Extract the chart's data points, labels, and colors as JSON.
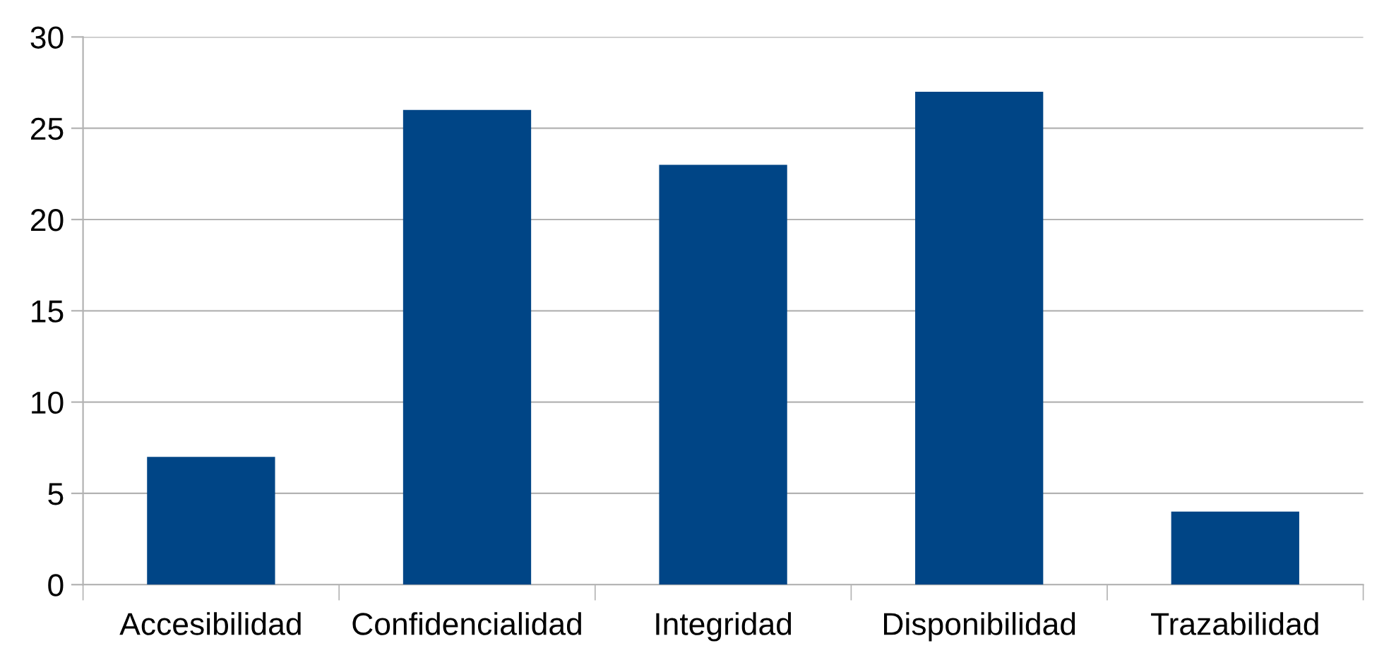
{
  "chart_data": {
    "type": "bar",
    "categories": [
      "Accesibilidad",
      "Confidencialidad",
      "Integridad",
      "Disponibilidad",
      "Trazabilidad"
    ],
    "values": [
      7,
      26,
      23,
      27,
      4
    ],
    "color": "#004586",
    "ylim": [
      0,
      30
    ],
    "yticks": [
      0,
      5,
      10,
      15,
      20,
      25,
      30
    ],
    "grid": "y",
    "legend": false
  }
}
